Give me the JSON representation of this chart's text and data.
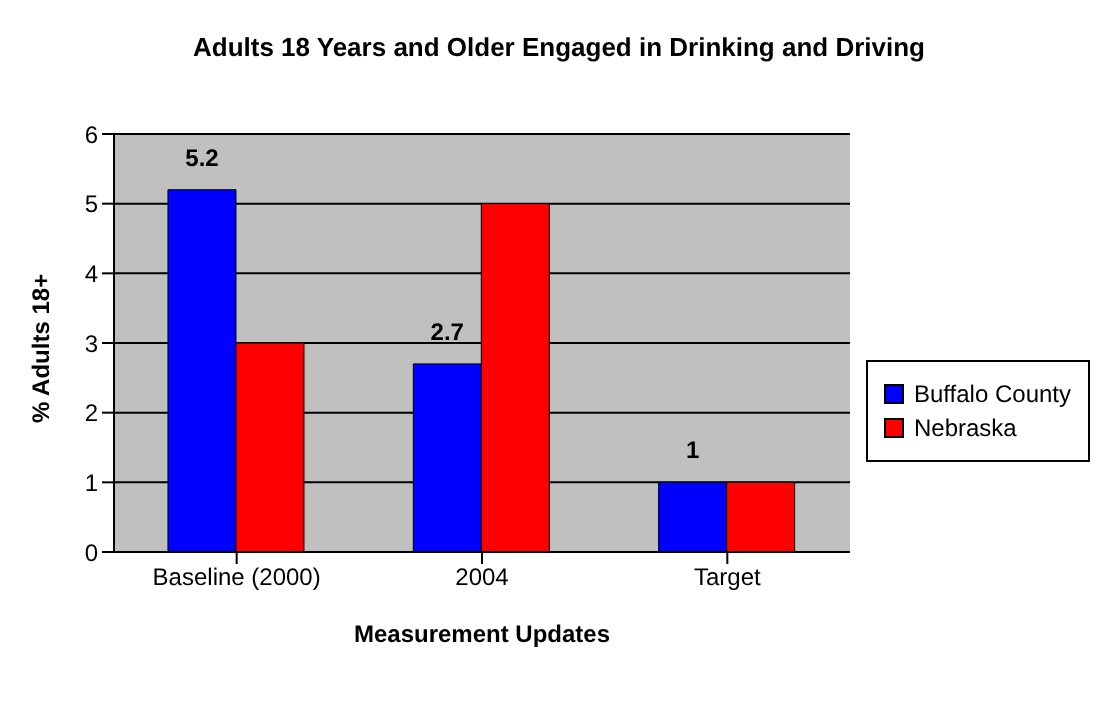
{
  "chart_data": {
    "type": "bar",
    "title": "Adults 18 Years and Older Engaged in Drinking and Driving",
    "xlabel": "Measurement Updates",
    "ylabel": "% Adults 18+",
    "categories": [
      "Baseline (2000)",
      "2004",
      "Target"
    ],
    "series": [
      {
        "name": "Buffalo County",
        "color": "#0000ff",
        "values": [
          5.2,
          2.7,
          1
        ],
        "value_labels": [
          "5.2",
          "2.7",
          "1"
        ]
      },
      {
        "name": "Nebraska",
        "color": "#ff0000",
        "values": [
          3,
          5,
          1
        ]
      }
    ],
    "ylim": [
      0,
      6
    ],
    "yticks": [
      0,
      1,
      2,
      3,
      4,
      5,
      6
    ],
    "grid": "y",
    "legend": "right"
  }
}
